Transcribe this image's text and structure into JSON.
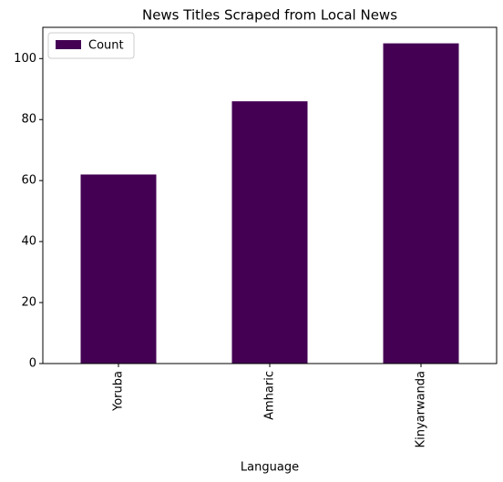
{
  "chart_data": {
    "type": "bar",
    "title": "News Titles Scraped from Local News",
    "x_label": "Language",
    "categories": [
      "Yoruba",
      "Amharic",
      "Kinyarwanda"
    ],
    "series": [
      {
        "name": "Count",
        "color": "#440154",
        "values": [
          62,
          86,
          105
        ]
      }
    ],
    "ylim": [
      0,
      110.25
    ],
    "yticks": [
      0,
      20,
      40,
      60,
      80,
      100
    ],
    "legend": "upper left",
    "grid": false
  }
}
